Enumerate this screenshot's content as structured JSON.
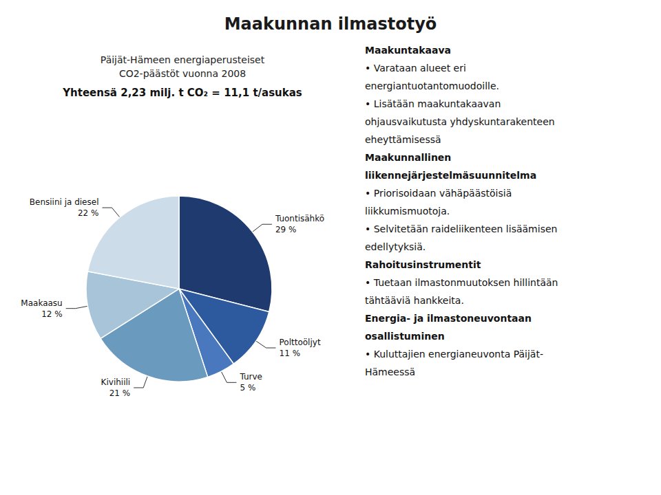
{
  "chart_data": {
    "type": "pie",
    "title": "Maakunnan ilmastotyö",
    "pie_title": [
      "Päijät-Hämeen energiaperusteiset",
      "CO2-päästöt vuonna 2008"
    ],
    "subtitle": "Yhteensä 2,23 milj. t CO₂ = 11,1 t/asukas",
    "categories": [
      "Tuontisähkö",
      "Polttoöljyt",
      "Turve",
      "Kivihiili",
      "Maakaasu",
      "Bensiini ja diesel"
    ],
    "values": [
      29,
      11,
      5,
      21,
      12,
      22
    ],
    "value_labels": [
      "29 %",
      "11 %",
      "5 %",
      "21 %",
      "12 %",
      "22 %"
    ],
    "colors": [
      "#1e3a6e",
      "#2d5a9e",
      "#4a78be",
      "#6a9abe",
      "#a8c4d8",
      "#ccdce8"
    ],
    "data_labels": true,
    "annotations": [
      {
        "heading": [
          "Maakuntakaava"
        ],
        "lines": [
          "• Varataan alueet eri",
          "energiantuotantomuodoille.",
          "• Lisätään maakuntakaavan",
          "ohjausvaikutusta yhdyskuntarakenteen",
          "eheyttämisessä"
        ]
      },
      {
        "heading": [
          "Maakunnallinen",
          "liikennejärjestelmäsuunnitelma"
        ],
        "lines": [
          "• Priorisoidaan vähäpäästöisiä",
          "liikkumismuotoja.",
          "• Selvitetään raideliikenteen lisäämisen",
          "edellytyksiä."
        ]
      },
      {
        "heading": [
          "Rahoitusinstrumentit"
        ],
        "lines": [
          "• Tuetaan ilmastonmuutoksen hillintään",
          "tähtääviä hankkeita."
        ]
      },
      {
        "heading": [
          "Energia- ja ilmastoneuvontaan",
          "osallistuminen"
        ],
        "lines": [
          "• Kuluttajien energianeuvonta Päijät-",
          "Hämeessä"
        ]
      }
    ]
  }
}
